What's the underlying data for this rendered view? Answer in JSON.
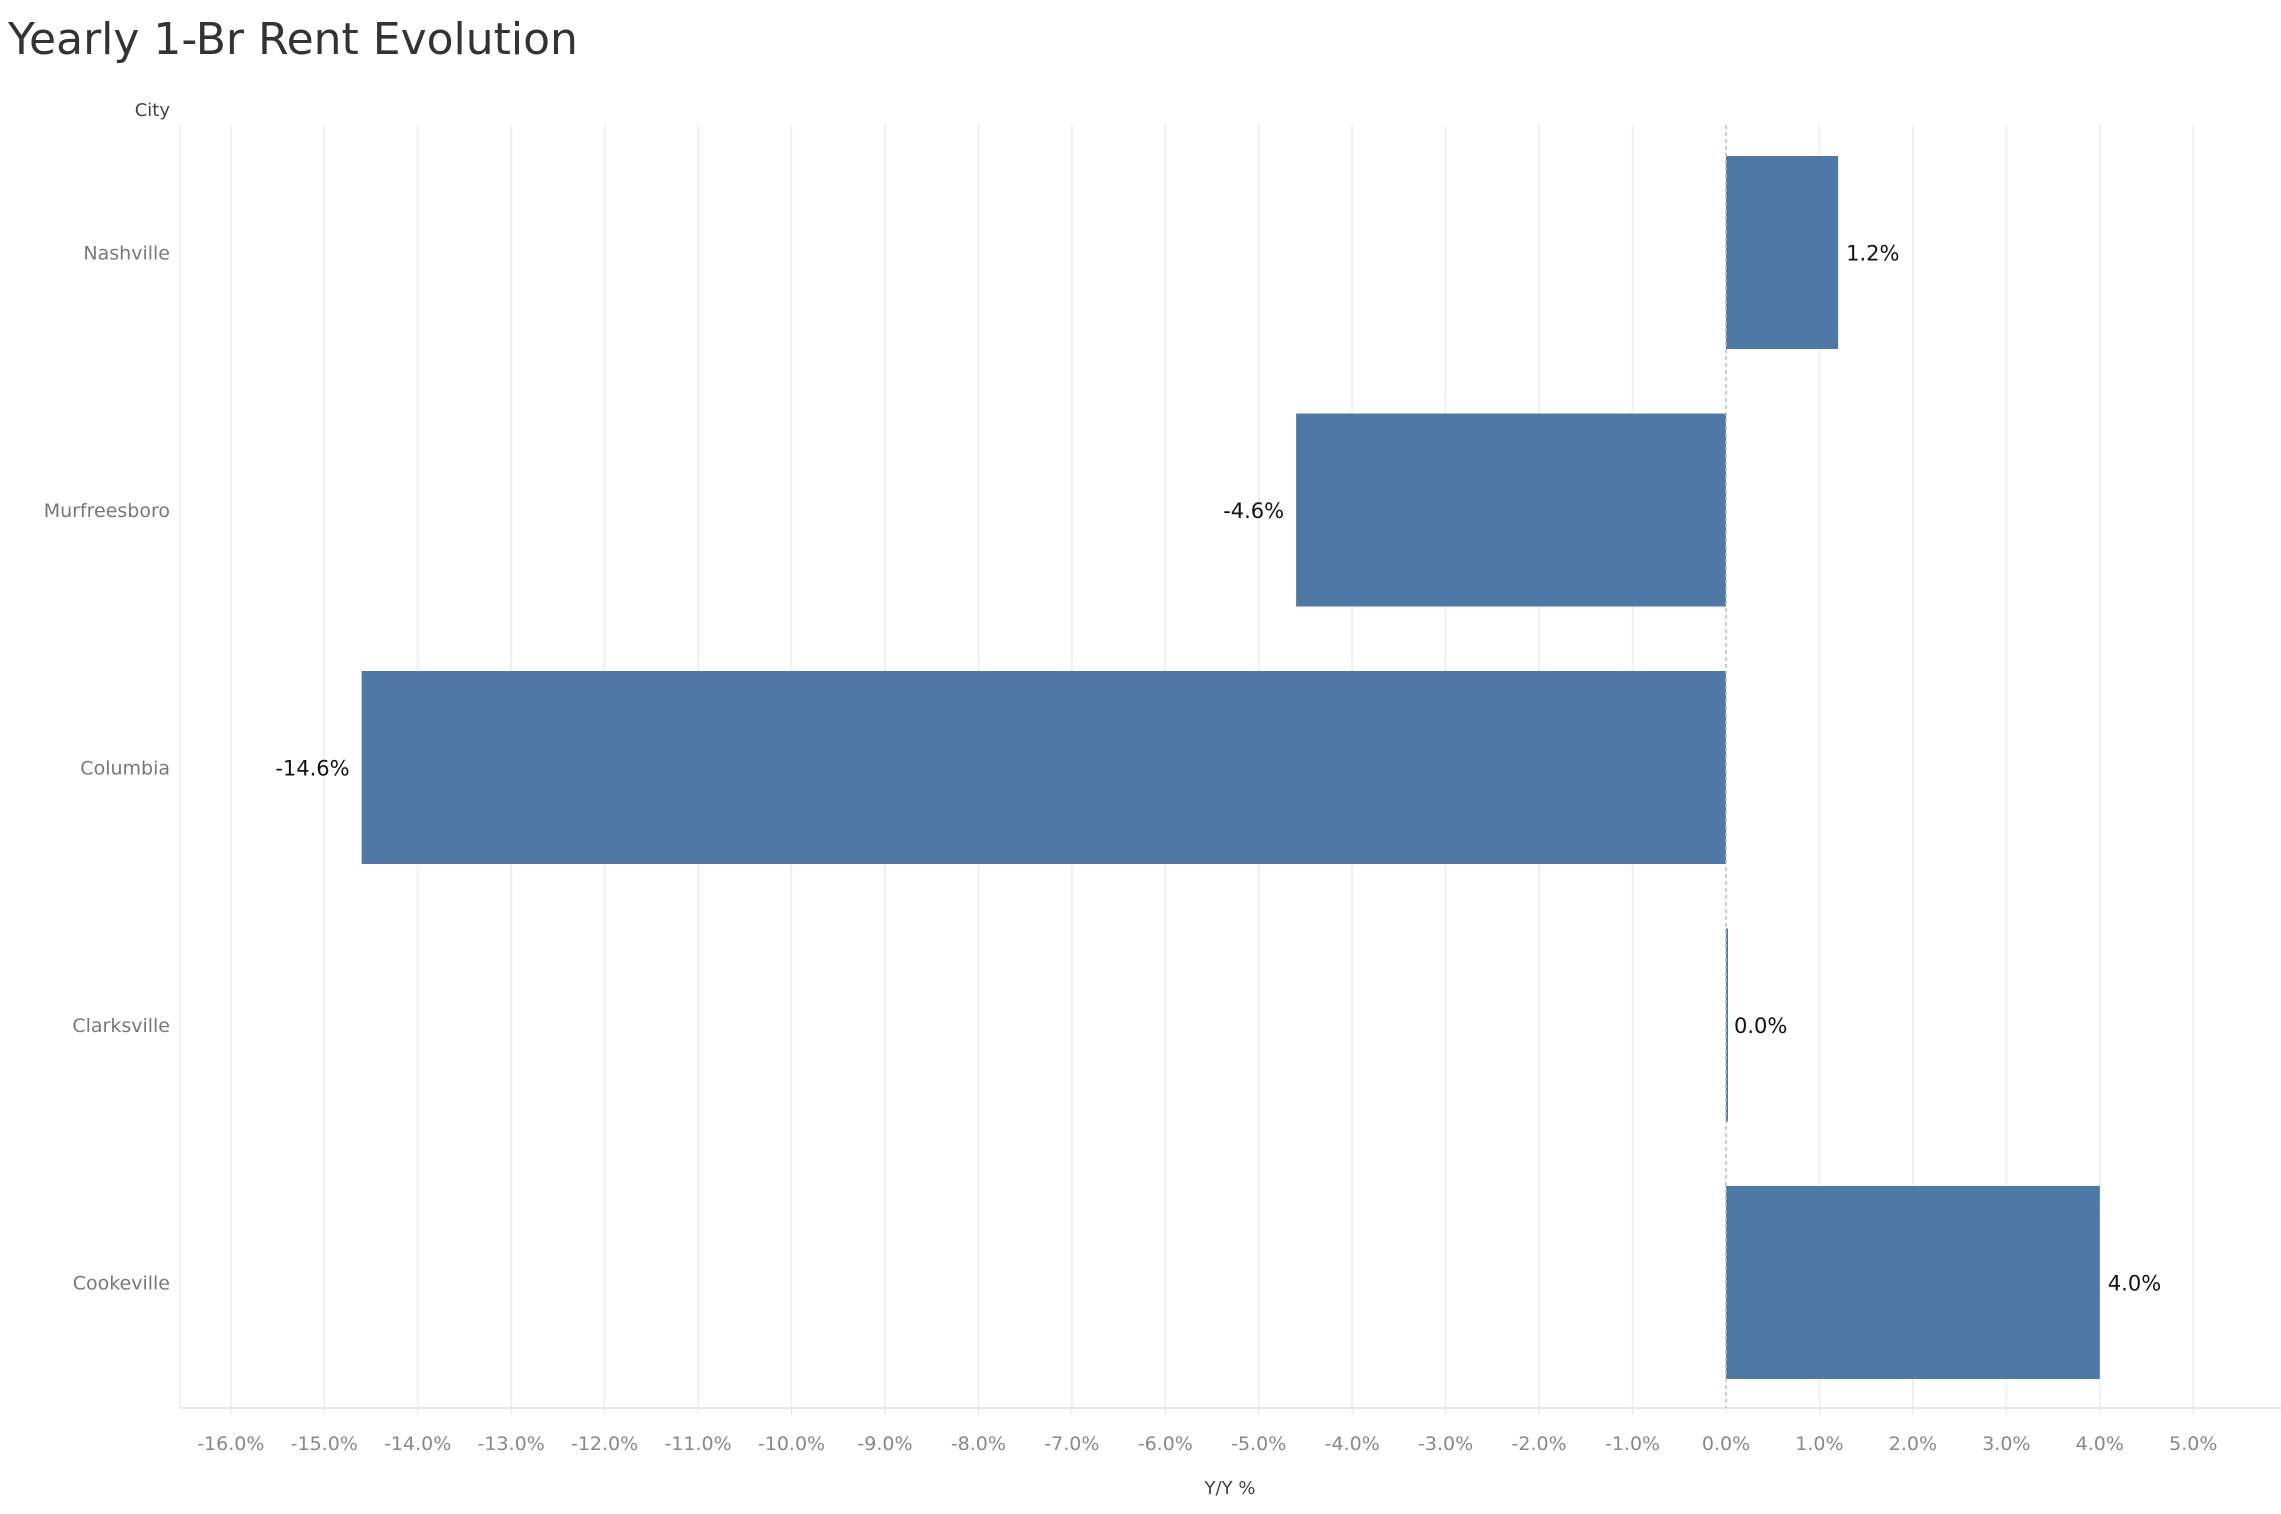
{
  "chart_data": {
    "type": "bar",
    "orientation": "horizontal",
    "title": "Yearly 1-Br Rent Evolution",
    "row_header": "City",
    "xlabel": "Y/Y %",
    "categories": [
      "Nashville",
      "Murfreesboro",
      "Columbia",
      "Clarksville",
      "Cookeville"
    ],
    "values": [
      1.2,
      -4.6,
      -14.6,
      0.0,
      4.0
    ],
    "data_labels": [
      "1.2%",
      "-4.6%",
      "-14.6%",
      "0.0%",
      "4.0%"
    ],
    "xlim": [
      -16.5,
      5.5
    ],
    "xticks": [
      -16,
      -15,
      -14,
      -13,
      -12,
      -11,
      -10,
      -9,
      -8,
      -7,
      -6,
      -5,
      -4,
      -3,
      -2,
      -1,
      0,
      1,
      2,
      3,
      4,
      5
    ],
    "xtick_labels": [
      "-16.0%",
      "-15.0%",
      "-14.0%",
      "-13.0%",
      "-12.0%",
      "-11.0%",
      "-10.0%",
      "-9.0%",
      "-8.0%",
      "-7.0%",
      "-6.0%",
      "-5.0%",
      "-4.0%",
      "-3.0%",
      "-2.0%",
      "-1.0%",
      "0.0%",
      "1.0%",
      "2.0%",
      "3.0%",
      "4.0%",
      "5.0%"
    ],
    "grid": "vertical",
    "bar_color": "#4e79a7"
  }
}
